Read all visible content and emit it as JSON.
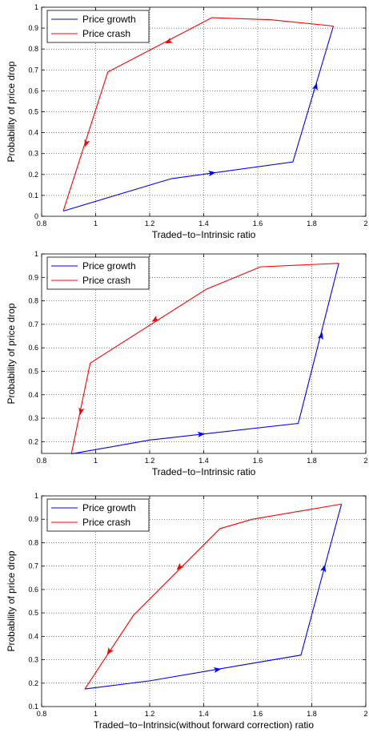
{
  "colors": {
    "growth": "#0000ff",
    "crash": "#ff0000",
    "axis": "#000000",
    "grid": "#000000"
  },
  "chart_data": [
    {
      "type": "line",
      "xlabel": "Traded−to−Intrinsic ratio",
      "ylabel": "Probability of price drop",
      "xlim": [
        0.8,
        2
      ],
      "ylim": [
        0,
        1
      ],
      "xticks": [
        0.8,
        1,
        1.2,
        1.4,
        1.6,
        1.8,
        2
      ],
      "xtick_labels": [
        "0.8",
        "1",
        "1.2",
        "1.4",
        "1.6",
        "1.8",
        "2"
      ],
      "yticks": [
        0,
        0.1,
        0.2,
        0.3,
        0.4,
        0.5,
        0.6,
        0.7,
        0.8,
        0.9,
        1
      ],
      "ytick_labels": [
        "0",
        "0.1",
        "0.2",
        "0.3",
        "0.4",
        "0.5",
        "0.6",
        "0.7",
        "0.8",
        "0.9",
        "1"
      ],
      "grid": true,
      "legend_position": "top-left",
      "series": [
        {
          "name": "Price growth",
          "color": "#0000ff",
          "x": [
            0.88,
            1.28,
            1.73,
            1.88
          ],
          "y": [
            0.025,
            0.18,
            0.26,
            0.91
          ],
          "arrows": [
            {
              "x": 1.43,
              "y": 0.207
            },
            {
              "x": 1.815,
              "y": 0.62
            }
          ]
        },
        {
          "name": "Price crash",
          "color": "#ff0000",
          "x": [
            1.88,
            1.65,
            1.43,
            1.045,
            0.88
          ],
          "y": [
            0.91,
            0.94,
            0.95,
            0.69,
            0.025
          ],
          "arrows": [
            {
              "x": 1.27,
              "y": 0.835
            },
            {
              "x": 0.965,
              "y": 0.35
            }
          ]
        }
      ]
    },
    {
      "type": "line",
      "xlabel": "Traded−to−Intrinsic ratio",
      "ylabel": "Probability of price drop",
      "xlim": [
        0.8,
        2
      ],
      "ylim": [
        0.15,
        1
      ],
      "xticks": [
        0.8,
        1,
        1.2,
        1.4,
        1.6,
        1.8,
        2
      ],
      "xtick_labels": [
        "0.8",
        "1",
        "1.2",
        "1.4",
        "1.6",
        "1.8",
        "2"
      ],
      "yticks": [
        0.2,
        0.3,
        0.4,
        0.5,
        0.6,
        0.7,
        0.8,
        0.9,
        1
      ],
      "ytick_labels": [
        "0.2",
        "0.3",
        "0.4",
        "0.5",
        "0.6",
        "0.7",
        "0.8",
        "0.9",
        "1"
      ],
      "grid": true,
      "legend_position": "top-left",
      "series": [
        {
          "name": "Price growth",
          "color": "#0000ff",
          "x": [
            0.91,
            1.2,
            1.75,
            1.9
          ],
          "y": [
            0.148,
            0.207,
            0.278,
            0.96
          ],
          "arrows": [
            {
              "x": 1.39,
              "y": 0.232
            },
            {
              "x": 1.835,
              "y": 0.65
            }
          ]
        },
        {
          "name": "Price crash",
          "color": "#ff0000",
          "x": [
            1.9,
            1.61,
            1.41,
            0.98,
            0.91
          ],
          "y": [
            0.96,
            0.945,
            0.85,
            0.535,
            0.148
          ],
          "arrows": [
            {
              "x": 1.22,
              "y": 0.72
            },
            {
              "x": 0.945,
              "y": 0.33
            }
          ]
        }
      ]
    },
    {
      "type": "line",
      "xlabel": "Traded−to−Intrinsic(without forward correction) ratio",
      "ylabel": "Probability of price drop",
      "xlim": [
        0.8,
        2
      ],
      "ylim": [
        0.1,
        1
      ],
      "xticks": [
        0.8,
        1,
        1.2,
        1.4,
        1.6,
        1.8,
        2
      ],
      "xtick_labels": [
        "0.8",
        "1",
        "1.2",
        "1.4",
        "1.6",
        "1.8",
        "2"
      ],
      "yticks": [
        0.1,
        0.2,
        0.3,
        0.4,
        0.5,
        0.6,
        0.7,
        0.8,
        0.9,
        1
      ],
      "ytick_labels": [
        "0.1",
        "0.2",
        "0.3",
        "0.4",
        "0.5",
        "0.6",
        "0.7",
        "0.8",
        "0.9",
        "1"
      ],
      "grid": true,
      "legend_position": "top-left",
      "series": [
        {
          "name": "Price growth",
          "color": "#0000ff",
          "x": [
            0.96,
            1.2,
            1.76,
            1.91
          ],
          "y": [
            0.175,
            0.21,
            0.32,
            0.965
          ],
          "arrows": [
            {
              "x": 1.45,
              "y": 0.258
            },
            {
              "x": 1.845,
              "y": 0.69
            }
          ]
        },
        {
          "name": "Price crash",
          "color": "#ff0000",
          "x": [
            1.91,
            1.58,
            1.46,
            1.14,
            0.96
          ],
          "y": [
            0.965,
            0.9,
            0.86,
            0.49,
            0.175
          ],
          "arrows": [
            {
              "x": 1.31,
              "y": 0.695
            },
            {
              "x": 1.05,
              "y": 0.335
            }
          ]
        }
      ]
    }
  ]
}
